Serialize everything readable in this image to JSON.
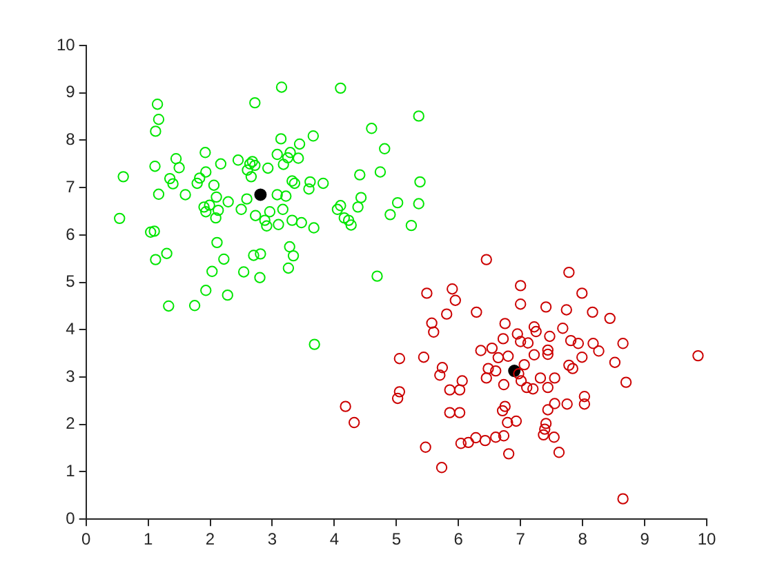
{
  "chart_data": {
    "type": "scatter",
    "marker": "circle",
    "grid": false,
    "legend": false,
    "xlim": [
      0,
      10
    ],
    "ylim": [
      0,
      10
    ],
    "xticks": [
      0,
      1,
      2,
      3,
      4,
      5,
      6,
      7,
      8,
      9,
      10
    ],
    "yticks": [
      0,
      1,
      2,
      3,
      4,
      5,
      6,
      7,
      8,
      9,
      10
    ],
    "series": [
      {
        "color": "#00e600",
        "x": [
          0.54,
          0.6,
          1.15,
          1.17,
          1.12,
          1.11,
          1.17,
          1.04,
          1.1,
          1.12,
          1.3,
          1.33,
          1.45,
          1.5,
          1.35,
          1.4,
          1.6,
          1.75,
          1.79,
          1.83,
          1.92,
          1.93,
          2.06,
          1.9,
          1.93,
          1.99,
          2.09,
          2.13,
          2.1,
          2.29,
          2.17,
          2.11,
          2.22,
          2.03,
          1.93,
          2.28,
          2.45,
          2.64,
          2.68,
          2.72,
          2.6,
          2.66,
          2.72,
          2.5,
          2.59,
          2.73,
          2.88,
          2.91,
          2.96,
          2.93,
          3.08,
          3.14,
          3.15,
          3.18,
          3.25,
          3.29,
          3.42,
          3.44,
          3.66,
          3.36,
          3.32,
          3.08,
          3.22,
          3.17,
          3.1,
          3.32,
          3.47,
          3.61,
          3.59,
          3.82,
          3.67,
          3.28,
          3.34,
          3.26,
          2.7,
          2.81,
          2.54,
          2.8,
          4.1,
          4.05,
          4.1,
          4.16,
          4.23,
          4.27,
          4.41,
          4.38,
          4.43,
          4.6,
          4.74,
          4.81,
          4.9,
          5.02,
          5.24,
          5.36,
          5.38,
          5.36,
          4.69,
          3.68
        ],
        "values": [
          6.35,
          7.23,
          8.76,
          8.44,
          8.19,
          7.45,
          6.86,
          6.06,
          6.08,
          5.48,
          5.61,
          4.5,
          7.61,
          7.42,
          7.19,
          7.08,
          6.85,
          4.51,
          7.09,
          7.2,
          7.74,
          7.33,
          7.05,
          6.59,
          6.49,
          6.63,
          6.36,
          6.52,
          6.8,
          6.7,
          7.5,
          5.84,
          5.49,
          5.23,
          4.83,
          4.73,
          7.58,
          7.5,
          7.55,
          7.47,
          7.37,
          7.23,
          8.79,
          6.54,
          6.76,
          6.41,
          6.31,
          6.19,
          6.49,
          7.41,
          7.7,
          8.03,
          9.12,
          7.49,
          7.63,
          7.74,
          7.62,
          7.92,
          8.09,
          7.09,
          7.14,
          6.85,
          6.82,
          6.54,
          6.22,
          6.31,
          6.26,
          7.12,
          6.97,
          7.09,
          6.15,
          5.75,
          5.56,
          5.3,
          5.57,
          5.6,
          5.22,
          5.1,
          9.1,
          6.54,
          6.62,
          6.36,
          6.31,
          6.21,
          7.27,
          6.59,
          6.79,
          8.25,
          7.33,
          7.82,
          6.43,
          6.68,
          6.2,
          8.51,
          7.12,
          6.66,
          5.13,
          3.69
        ]
      },
      {
        "color": "#cc0000",
        "x": [
          6.45,
          7.78,
          7.0,
          7.0,
          7.99,
          5.49,
          5.9,
          5.95,
          5.81,
          6.29,
          7.41,
          7.74,
          8.16,
          8.44,
          6.75,
          7.22,
          7.25,
          7.68,
          5.57,
          5.6,
          6.72,
          6.95,
          7.0,
          7.12,
          7.47,
          7.81,
          7.93,
          8.17,
          8.26,
          8.65,
          6.36,
          6.54,
          6.8,
          6.64,
          7.22,
          7.44,
          7.44,
          7.99,
          8.52,
          9.86,
          5.05,
          5.44,
          5.74,
          5.7,
          6.06,
          5.86,
          6.02,
          6.48,
          6.6,
          6.45,
          6.73,
          6.97,
          7.06,
          7.01,
          7.1,
          7.2,
          7.32,
          7.44,
          7.55,
          7.78,
          7.84,
          8.7,
          5.05,
          5.02,
          4.18,
          4.32,
          5.86,
          6.02,
          6.75,
          6.71,
          6.79,
          6.93,
          7.44,
          7.55,
          7.75,
          8.03,
          8.03,
          7.41,
          7.39,
          7.37,
          7.54,
          7.62,
          6.73,
          6.6,
          6.43,
          6.28,
          6.16,
          6.04,
          6.81,
          5.47,
          5.73,
          8.65
        ],
        "values": [
          5.48,
          5.21,
          4.93,
          4.54,
          4.77,
          4.77,
          4.86,
          4.62,
          4.33,
          4.37,
          4.48,
          4.42,
          4.37,
          4.24,
          4.13,
          4.06,
          3.96,
          4.03,
          4.14,
          3.95,
          3.81,
          3.91,
          3.75,
          3.72,
          3.86,
          3.77,
          3.71,
          3.71,
          3.55,
          3.71,
          3.56,
          3.61,
          3.44,
          3.41,
          3.47,
          3.48,
          3.57,
          3.42,
          3.31,
          3.45,
          3.39,
          3.42,
          3.2,
          3.04,
          2.92,
          2.73,
          2.73,
          3.18,
          3.13,
          2.98,
          2.84,
          3.07,
          3.26,
          2.92,
          2.78,
          2.75,
          2.98,
          2.78,
          2.98,
          3.25,
          3.18,
          2.89,
          2.69,
          2.55,
          2.38,
          2.04,
          2.25,
          2.25,
          2.38,
          2.29,
          2.04,
          2.07,
          2.31,
          2.44,
          2.43,
          2.59,
          2.43,
          2.02,
          1.9,
          1.78,
          1.73,
          1.41,
          1.76,
          1.73,
          1.66,
          1.72,
          1.62,
          1.6,
          1.38,
          1.52,
          1.09,
          0.43
        ]
      },
      {
        "color": "#000000",
        "x": [
          2.81
        ],
        "values": [
          6.85
        ]
      },
      {
        "color": "#000000",
        "x": [
          6.9
        ],
        "values": [
          3.13
        ]
      }
    ]
  }
}
